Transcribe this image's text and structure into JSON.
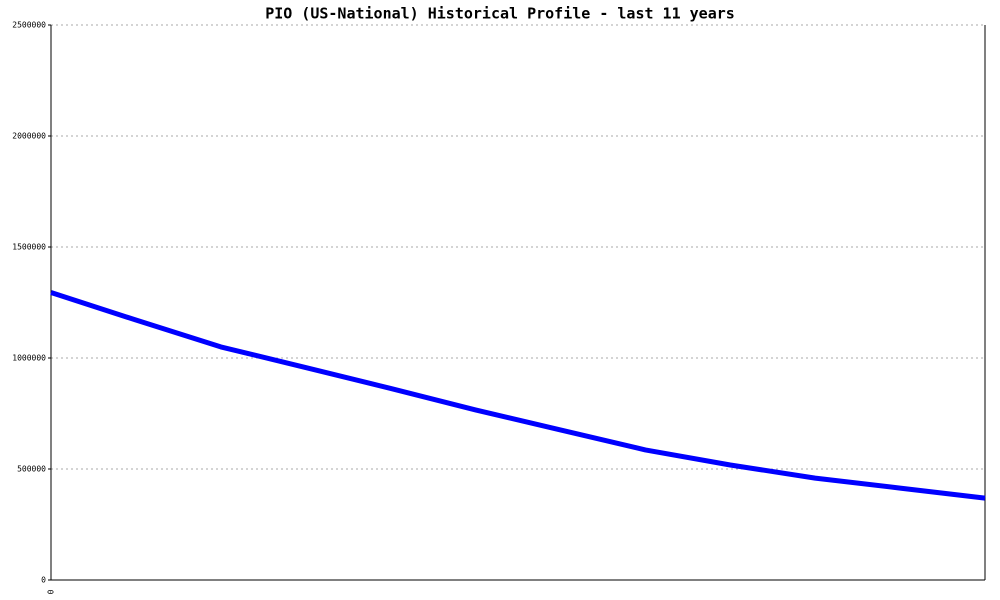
{
  "chart_data": {
    "type": "line",
    "title": "PIO (US-National) Historical Profile - last 11 years",
    "categories": [
      "0",
      null,
      null,
      null,
      null,
      null,
      null,
      null,
      null,
      null,
      null,
      null
    ],
    "series": [
      {
        "color": "#0000ff",
        "values": [
          1295000,
          1171000,
          1050000,
          957000,
          863000,
          766000,
          676000,
          586000,
          518000,
          459000,
          414000,
          369000
        ]
      }
    ],
    "ylim": [
      0,
      2500000
    ],
    "yticks": [
      0,
      500000,
      1000000,
      1500000,
      2000000,
      2500000
    ],
    "grid": true
  }
}
